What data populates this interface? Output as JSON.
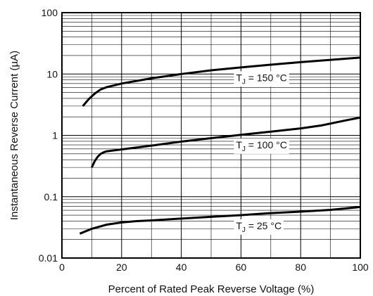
{
  "chart_data": {
    "type": "line",
    "xlabel": "Percent of Rated Peak Reverse Voltage (%)",
    "ylabel": "Instantaneous Reverse Current (µA)",
    "xlim": [
      0,
      100
    ],
    "ylim": [
      0.01,
      100
    ],
    "yscale": "log",
    "grid": true,
    "x_ticks": [
      0,
      20,
      40,
      60,
      80,
      100
    ],
    "x_tick_labels": [
      "0",
      "20",
      "40",
      "60",
      "80",
      "100"
    ],
    "y_ticks": [
      0.01,
      0.1,
      1,
      10,
      100
    ],
    "y_tick_labels": [
      "0.01",
      "0.1",
      "1",
      "10",
      "100"
    ],
    "series": [
      {
        "name": "T_J = 150 °C",
        "label_main": "T",
        "label_sub": "J",
        "label_rest": " = 150 °C",
        "label_x": 64,
        "x": [
          7,
          9,
          11,
          13,
          15,
          20,
          30,
          40,
          50,
          60,
          70,
          80,
          90,
          100
        ],
        "y": [
          3.0,
          3.9,
          4.8,
          5.6,
          6.1,
          7.0,
          8.5,
          10.0,
          11.5,
          12.8,
          14.2,
          15.6,
          17.0,
          18.5
        ]
      },
      {
        "name": "T_J = 100 °C",
        "label_main": "T",
        "label_sub": "J",
        "label_rest": " = 100 °C",
        "label_x": 64,
        "x": [
          10,
          11,
          12,
          13,
          14,
          15,
          20,
          30,
          40,
          50,
          60,
          70,
          80,
          87,
          95,
          100
        ],
        "y": [
          0.3,
          0.38,
          0.45,
          0.5,
          0.53,
          0.55,
          0.59,
          0.68,
          0.79,
          0.9,
          1.02,
          1.15,
          1.3,
          1.45,
          1.75,
          1.95
        ]
      },
      {
        "name": "T_J = 25 °C",
        "label_main": "T",
        "label_sub": "J",
        "label_rest": " = 25 °C",
        "label_x": 64,
        "x": [
          6,
          10,
          15,
          20,
          25,
          30,
          40,
          50,
          60,
          70,
          80,
          90,
          100
        ],
        "y": [
          0.025,
          0.03,
          0.035,
          0.038,
          0.04,
          0.041,
          0.044,
          0.047,
          0.05,
          0.054,
          0.057,
          0.061,
          0.068
        ]
      }
    ]
  }
}
